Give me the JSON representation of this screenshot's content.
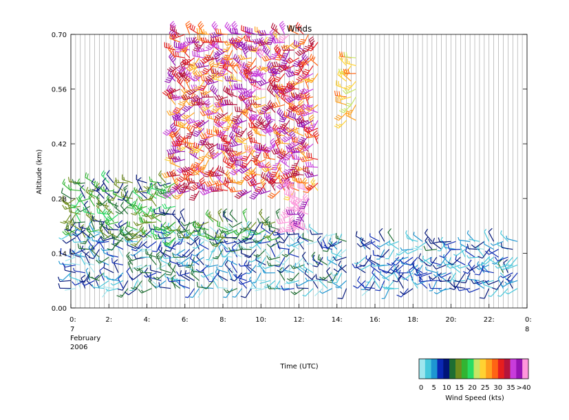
{
  "chart_data": {
    "type": "wind-barb",
    "title": "Winds",
    "xlabel": "Time (UTC)",
    "ylabel": "Altitude (km)",
    "date_label": [
      "7",
      "February",
      "2006"
    ],
    "end_day_label": "8",
    "xlim": [
      0,
      24
    ],
    "ylim": [
      0.0,
      0.7
    ],
    "x_ticks": [
      "0:",
      "2:",
      "4:",
      "6:",
      "8:",
      "10:",
      "12:",
      "14:",
      "16:",
      "18:",
      "20:",
      "22:",
      "0:"
    ],
    "x_tick_values": [
      0,
      2,
      4,
      6,
      8,
      10,
      12,
      14,
      16,
      18,
      20,
      22,
      24
    ],
    "y_ticks": [
      "0.00",
      "0.14",
      "0.28",
      "0.42",
      "0.56",
      "0.70"
    ],
    "y_tick_values": [
      0.0,
      0.14,
      0.28,
      0.42,
      0.56,
      0.7
    ],
    "profile_interval_hours": 0.25,
    "grid": "vertical lines at each profile time",
    "colorbar": {
      "title": "Wind Speed (kts)",
      "tick_labels": [
        "0",
        "5",
        "10",
        "15",
        "20",
        "25",
        "30",
        "35",
        ">40"
      ],
      "colors": [
        "#9ee6ee",
        "#46c8dc",
        "#1e96d2",
        "#0a28b4",
        "#001478",
        "#1e6e32",
        "#6e8c1e",
        "#32b432",
        "#28dc64",
        "#c8e664",
        "#ffd232",
        "#ffa01e",
        "#ff6414",
        "#e61e1e",
        "#b4143c",
        "#c83cdc",
        "#9614b4",
        "#ff96dc"
      ]
    },
    "regions": [
      {
        "time_range": [
          0,
          14.5
        ],
        "altitude_range": [
          0.05,
          0.2
        ],
        "speed_kts": [
          0,
          14
        ],
        "direction": "mixed"
      },
      {
        "time_range": [
          0,
          5.5
        ],
        "altitude_range": [
          0.18,
          0.32
        ],
        "speed_kts": [
          10,
          20
        ],
        "direction": "mixed"
      },
      {
        "time_range": [
          5.5,
          11
        ],
        "altitude_range": [
          0.18,
          0.22
        ],
        "speed_kts": [
          10,
          18
        ],
        "direction": "mixed"
      },
      {
        "time_range": [
          5.5,
          13
        ],
        "altitude_range": [
          0.3,
          0.7
        ],
        "speed_kts": [
          25,
          40
        ],
        "direction": "mixed"
      },
      {
        "time_range": [
          11.5,
          12.5
        ],
        "altitude_range": [
          0.2,
          0.3
        ],
        "speed_kts": [
          38,
          45
        ],
        "direction": "mixed"
      },
      {
        "time_range": [
          14.5,
          15.0
        ],
        "altitude_range": [
          0.48,
          0.65
        ],
        "speed_kts": [
          22,
          30
        ],
        "direction": "mixed"
      },
      {
        "time_range": [
          15.5,
          23.5
        ],
        "altitude_range": [
          0.05,
          0.18
        ],
        "speed_kts": [
          2,
          12
        ],
        "direction": "mixed"
      }
    ]
  }
}
